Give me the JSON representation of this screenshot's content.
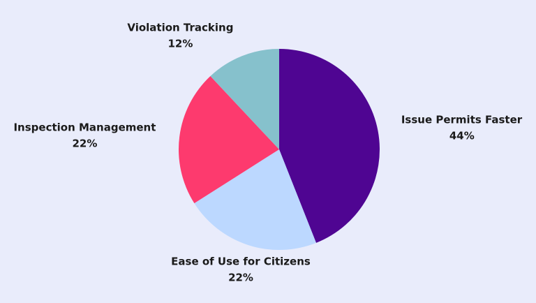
{
  "chart_data": {
    "type": "pie",
    "start_angle_deg": 0,
    "direction": "clockwise",
    "colors": {
      "background": "#e9ecfb",
      "text": "#1a1a1a"
    },
    "slices": [
      {
        "label": "Issue Permits Faster",
        "value": 44,
        "value_label": "44%",
        "color": "#4f0592"
      },
      {
        "label": "Ease of Use for Citizens",
        "value": 22,
        "value_label": "22%",
        "color": "#bcd8ff"
      },
      {
        "label": "Inspection Management",
        "value": 22,
        "value_label": "22%",
        "color": "#fd3a6e"
      },
      {
        "label": "Violation Tracking",
        "value": 12,
        "value_label": "12%",
        "color": "#86c1cc"
      }
    ]
  }
}
